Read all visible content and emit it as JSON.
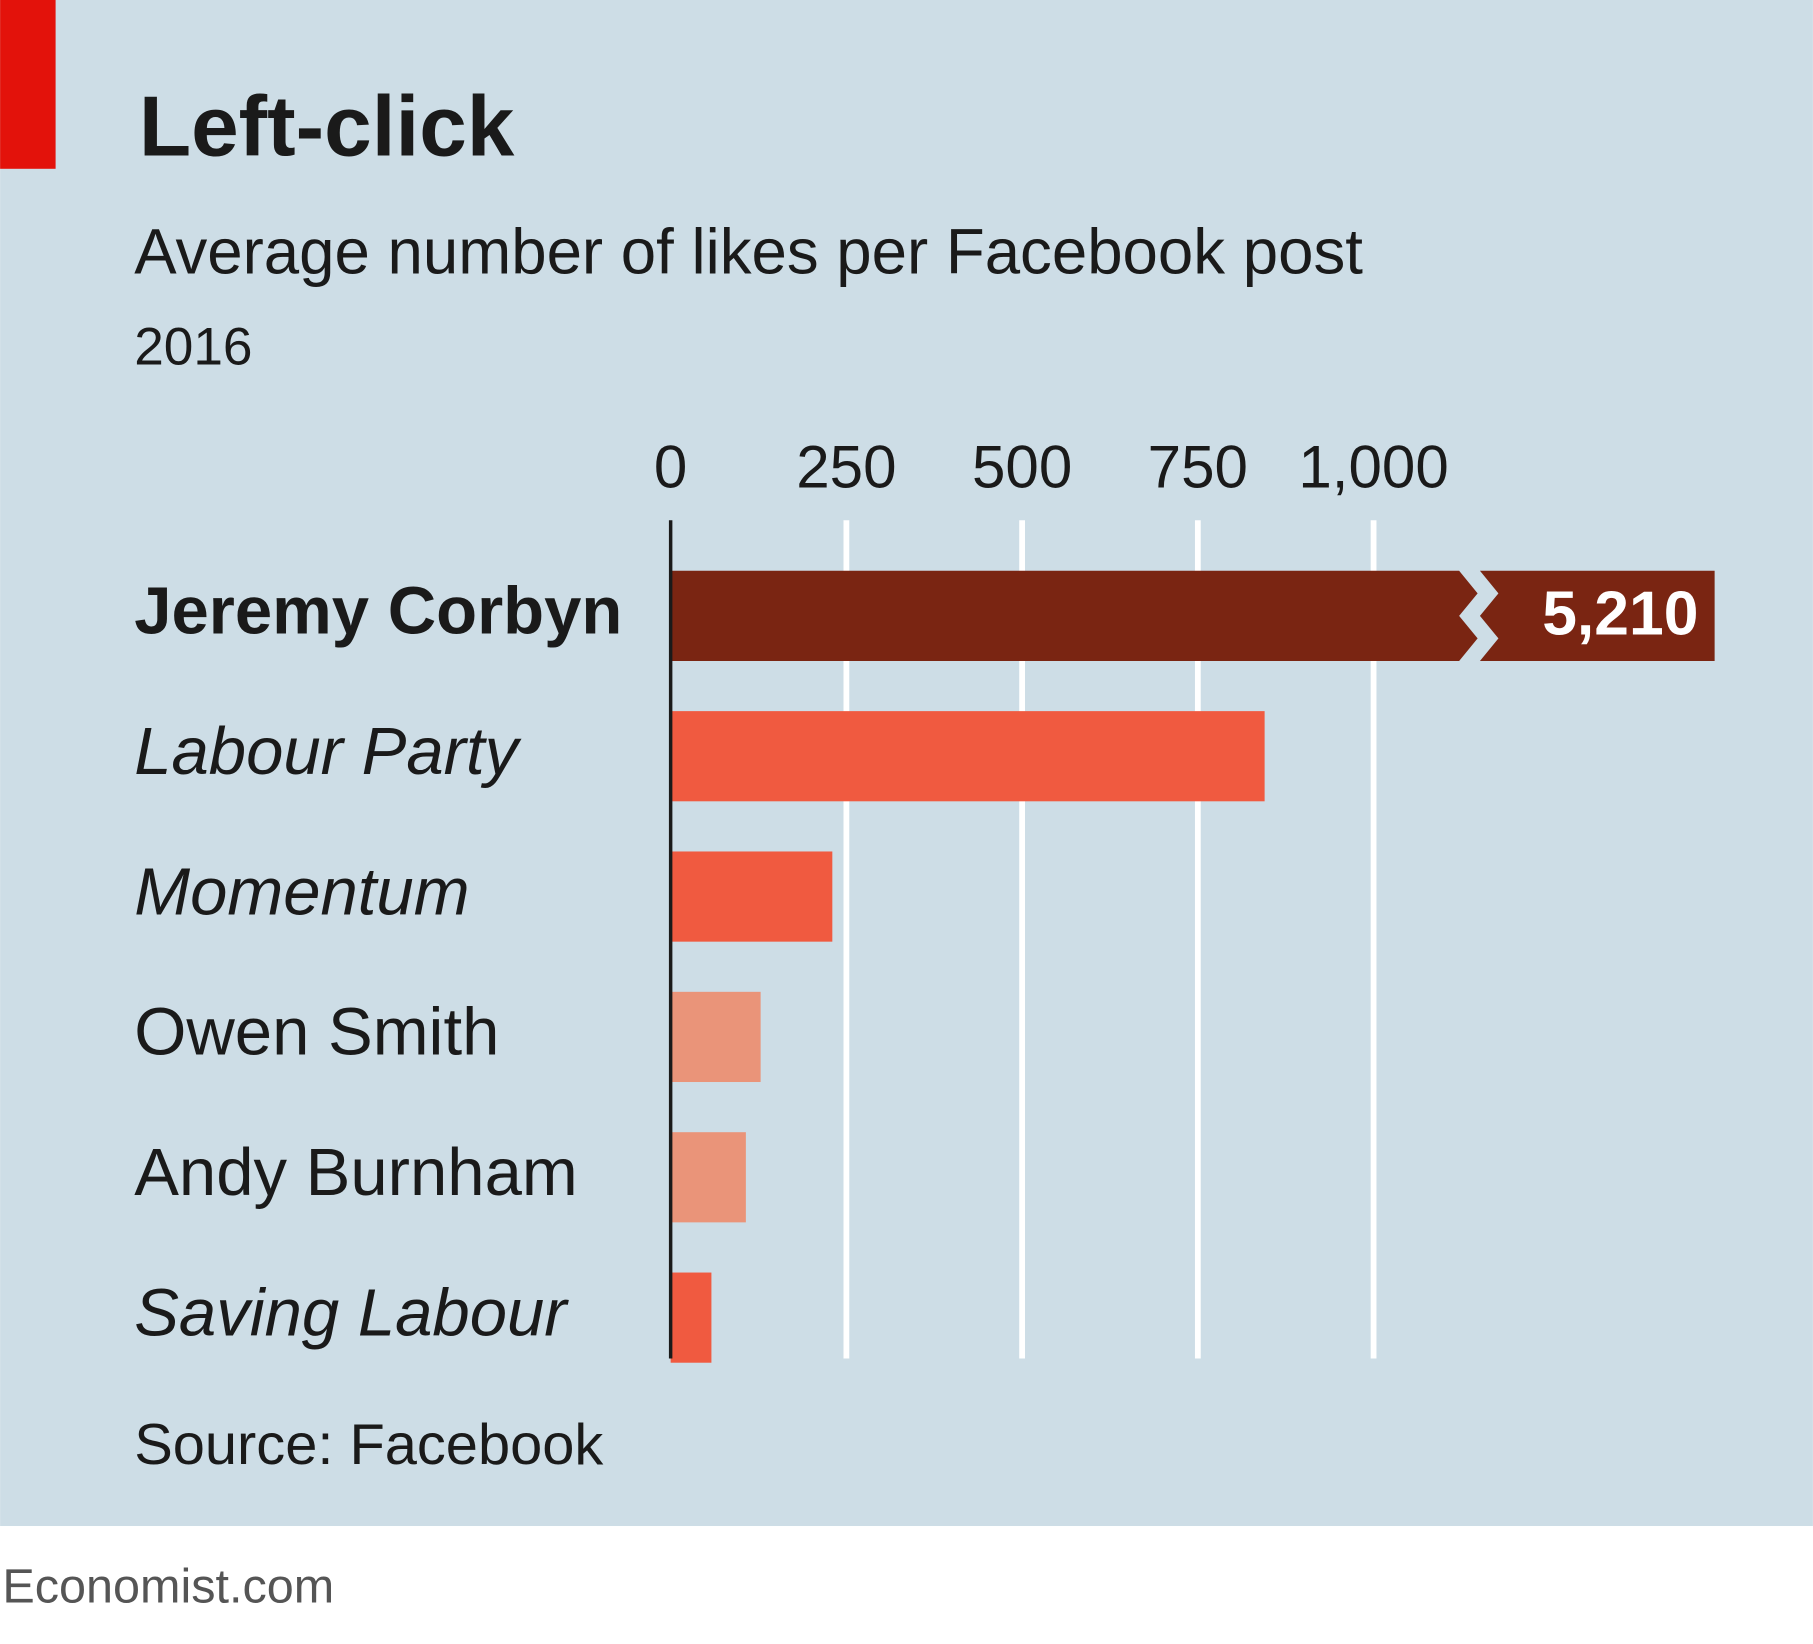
{
  "chart_data": {
    "type": "bar",
    "orientation": "horizontal",
    "title": "Left-click",
    "subtitle": "Average number of likes per Facebook post",
    "period": "2016",
    "categories": [
      "Jeremy Corbyn",
      "Labour Party",
      "Momentum",
      "Owen Smith",
      "Andy Burnham",
      "Saving Labour"
    ],
    "label_styles": [
      "bold",
      "italic",
      "italic",
      "normal",
      "normal",
      "italic"
    ],
    "values": [
      5210,
      845,
      230,
      128,
      107,
      58
    ],
    "value_labels": [
      "5,210",
      null,
      null,
      null,
      null,
      null
    ],
    "colors": [
      "#7a2512",
      "#f05a40",
      "#f05a40",
      "#ea9479",
      "#ea9479",
      "#f05a40"
    ],
    "xlim": [
      0,
      1000
    ],
    "xticks": [
      0,
      250,
      500,
      750,
      {
        "value": 1000,
        "label": "1,000"
      }
    ],
    "grid": true,
    "source": "Source: Facebook",
    "footer": "Economist.com"
  }
}
